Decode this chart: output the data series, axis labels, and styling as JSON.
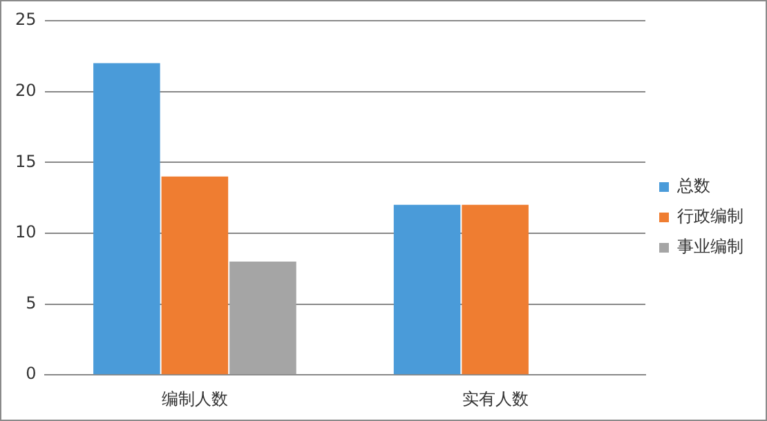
{
  "chart_data": {
    "type": "bar",
    "categories": [
      "编制人数",
      "实有人数"
    ],
    "series": [
      {
        "name": "总数",
        "color": "#4a9bd9",
        "values": [
          22,
          12
        ]
      },
      {
        "name": "行政编制",
        "color": "#ef7d31",
        "values": [
          14,
          12
        ]
      },
      {
        "name": "事业编制",
        "color": "#a5a5a5",
        "values": [
          8,
          null
        ]
      }
    ],
    "ylim": [
      0,
      25
    ],
    "yticks": [
      0,
      5,
      10,
      15,
      20,
      25
    ],
    "grid": "y",
    "legend": "right"
  }
}
